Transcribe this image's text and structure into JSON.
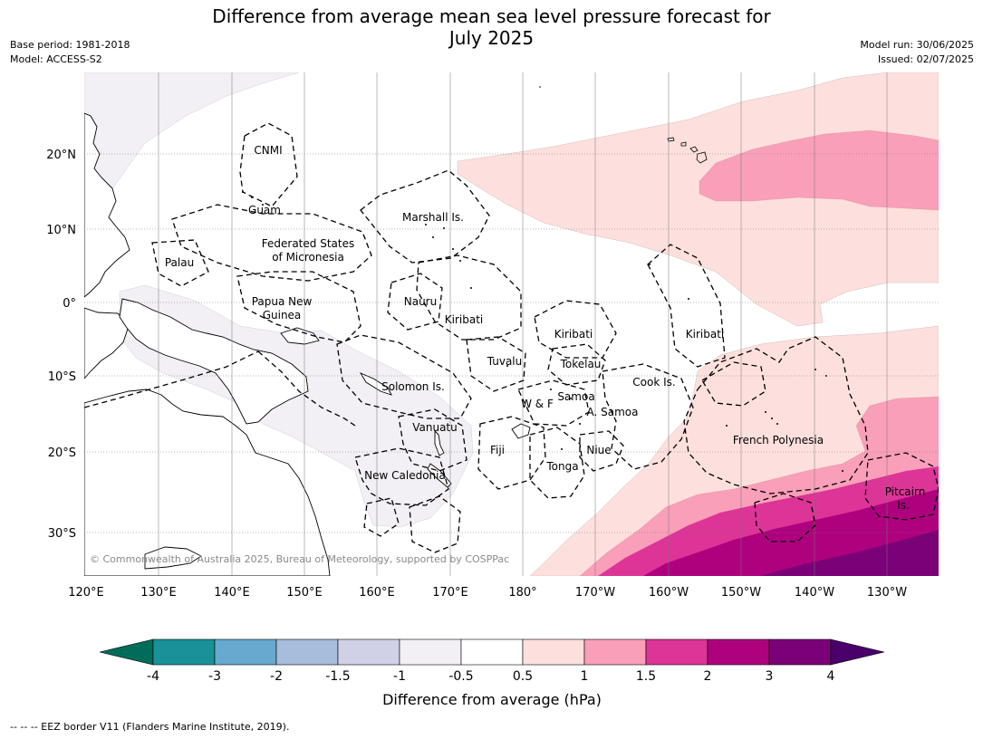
{
  "title": {
    "line1": "Difference from average mean sea level pressure forecast for",
    "line2": "July 2025"
  },
  "meta_left": {
    "base_period": "Base period: 1981-2018",
    "model": "Model: ACCESS-S2"
  },
  "meta_right": {
    "model_run": "Model run: 30/06/2025",
    "issued": "Issued: 02/07/2025"
  },
  "map": {
    "lat_labels": [
      "20°N",
      "10°N",
      "0°",
      "10°S",
      "20°S",
      "30°S"
    ],
    "lon_labels": [
      "120°E",
      "130°E",
      "140°E",
      "150°E",
      "160°E",
      "170°E",
      "180°",
      "170°W",
      "160°W",
      "150°W",
      "140°W",
      "130°W"
    ],
    "regions": [
      "CNMI",
      "Guam",
      "Marshall Is.",
      "Federated States",
      "of Micronesia",
      "Palau",
      "Papua New",
      "Guinea",
      "Nauru",
      "Kiribati",
      "Kiribati",
      "Kiribati",
      "Tuvalu",
      "Tokelau",
      "Solomon Is.",
      "Cook Is.",
      "Samoa",
      "W & F",
      "A. Samoa",
      "Vanuatu",
      "Fiji",
      "Niue",
      "French Polynesia",
      "Tonga",
      "New Caledonia",
      "Pitcairn",
      "Is."
    ],
    "copyright": "© Commonwealth of Australia 2025, Bureau of Meteorology, supported by COSPPac",
    "colors": {
      "sea_above_0_5": "#fde0dd",
      "1_to_1_5": "#f99fb9",
      "1_5_to_2": "#dd3497",
      "2_to_3": "#ae017e",
      "3_to_4": "#7a0177",
      "-1_to_-0_5": "#f2eff5"
    }
  },
  "colorbar": {
    "ticks": [
      "-4",
      "-3",
      "-2",
      "-1.5",
      "-1",
      "-0.5",
      "0.5",
      "1",
      "1.5",
      "2",
      "3",
      "4"
    ],
    "colors": [
      "#016c59",
      "#1a9198",
      "#67a9cf",
      "#a6bddb",
      "#d0d1e6",
      "#f2eff5",
      "#ffffff",
      "#fde0dd",
      "#f99fb9",
      "#dd3497",
      "#ae017e",
      "#7a0177",
      "#49006a"
    ],
    "label": "Difference from average (hPa)"
  },
  "footer": "--  --  -- EEZ border V11 (Flanders Marine Institute, 2019)."
}
